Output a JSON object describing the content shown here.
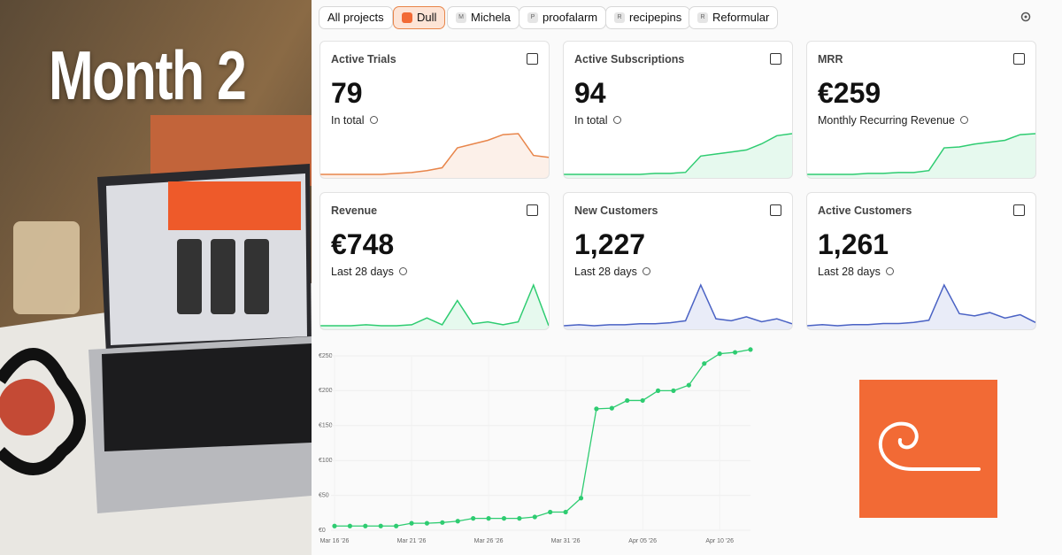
{
  "photo": {
    "headline": "Month 2"
  },
  "tabs": [
    "All projects",
    "Dull",
    "Michela",
    "proofalarm",
    "recipepins",
    "Reformular"
  ],
  "tab_badges": [
    "M",
    "P",
    "R",
    "R"
  ],
  "cards": [
    {
      "title": "Active Trials",
      "value": "79",
      "subtitle": "In total",
      "color": "#e8854a",
      "spark": [
        2,
        2,
        2,
        2,
        2,
        3,
        4,
        6,
        9,
        30,
        34,
        38,
        44,
        45,
        22,
        20
      ]
    },
    {
      "title": "Active Subscriptions",
      "value": "94",
      "subtitle": "In total",
      "color": "#2ecc71",
      "spark": [
        2,
        2,
        2,
        2,
        2,
        2,
        3,
        3,
        4,
        20,
        22,
        24,
        26,
        32,
        40,
        42
      ]
    },
    {
      "title": "MRR",
      "value": "€259",
      "subtitle": "Monthly Recurring Revenue",
      "color": "#2ecc71",
      "spark": [
        2,
        2,
        2,
        2,
        3,
        3,
        4,
        4,
        6,
        30,
        31,
        34,
        36,
        38,
        44,
        45
      ]
    },
    {
      "title": "Revenue",
      "value": "€748",
      "subtitle": "Last 28 days",
      "color": "#2ecc71",
      "spark": [
        2,
        2,
        2,
        3,
        2,
        2,
        3,
        10,
        3,
        28,
        4,
        6,
        3,
        6,
        44,
        2
      ]
    },
    {
      "title": "New Customers",
      "value": "1,227",
      "subtitle": "Last 28 days",
      "color": "#4a62c4",
      "spark": [
        3,
        4,
        3,
        4,
        4,
        5,
        5,
        6,
        8,
        44,
        10,
        8,
        12,
        7,
        10,
        5
      ]
    },
    {
      "title": "Active Customers",
      "value": "1,261",
      "subtitle": "Last 28 days",
      "color": "#4a62c4",
      "spark": [
        3,
        4,
        3,
        4,
        4,
        5,
        5,
        6,
        8,
        40,
        14,
        12,
        15,
        10,
        13,
        6
      ]
    }
  ],
  "chart_data": {
    "type": "line",
    "color": "#2ecc71",
    "categories": [
      "Mar 16 '26",
      "Mar 17 '26",
      "Mar 18 '26",
      "Mar 19 '26",
      "Mar 20 '26",
      "Mar 21 '26",
      "Mar 22 '26",
      "Mar 23 '26",
      "Mar 24 '26",
      "Mar 25 '26",
      "Mar 26 '26",
      "Mar 27 '26",
      "Mar 28 '26",
      "Mar 29 '26",
      "Mar 30 '26",
      "Mar 31 '26",
      "Apr 01 '26",
      "Apr 02 '26",
      "Apr 03 '26",
      "Apr 04 '26",
      "Apr 05 '26",
      "Apr 06 '26",
      "Apr 07 '26",
      "Apr 08 '26",
      "Apr 09 '26",
      "Apr 10 '26",
      "Apr 11 '26",
      "Apr 12 '26"
    ],
    "values": [
      6,
      6,
      6,
      6,
      6,
      10,
      10,
      11,
      13,
      17,
      17,
      17,
      17,
      19,
      26,
      26,
      46,
      174,
      175,
      186,
      186,
      200,
      200,
      208,
      239,
      253,
      255,
      259
    ],
    "xtick_indices": [
      0,
      5,
      10,
      15,
      20,
      25
    ],
    "ylim": [
      0,
      250
    ],
    "yticks": [
      {
        "value": 0,
        "label": "€0"
      },
      {
        "value": 50,
        "label": "€50"
      },
      {
        "value": 100,
        "label": "€100"
      },
      {
        "value": 150,
        "label": "€150"
      },
      {
        "value": 200,
        "label": "€200"
      },
      {
        "value": 250,
        "label": "€250"
      }
    ],
    "grid": true
  }
}
